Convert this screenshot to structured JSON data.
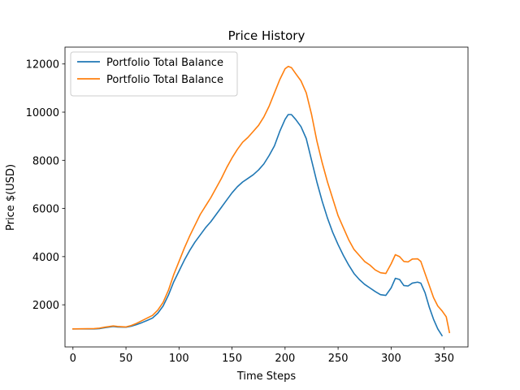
{
  "chart_data": {
    "type": "line",
    "title": "Price History",
    "xlabel": "Time Steps",
    "ylabel": "Price $(USD)",
    "xlim": [
      -7.5,
      372.5
    ],
    "ylim": [
      250,
      12700
    ],
    "xticks": [
      0,
      50,
      100,
      150,
      200,
      250,
      300,
      350
    ],
    "yticks": [
      2000,
      4000,
      6000,
      8000,
      10000,
      12000
    ],
    "grid": false,
    "legend_position": "top-left",
    "series": [
      {
        "name": "Portfolio Total Balance",
        "color": "#1f77b4",
        "points": [
          [
            0,
            1000
          ],
          [
            20,
            1000
          ],
          [
            25,
            1010
          ],
          [
            30,
            1050
          ],
          [
            38,
            1100
          ],
          [
            42,
            1080
          ],
          [
            50,
            1070
          ],
          [
            55,
            1110
          ],
          [
            60,
            1180
          ],
          [
            65,
            1260
          ],
          [
            70,
            1350
          ],
          [
            75,
            1450
          ],
          [
            80,
            1650
          ],
          [
            85,
            1950
          ],
          [
            90,
            2400
          ],
          [
            95,
            2950
          ],
          [
            100,
            3400
          ],
          [
            105,
            3850
          ],
          [
            110,
            4250
          ],
          [
            115,
            4600
          ],
          [
            120,
            4900
          ],
          [
            125,
            5200
          ],
          [
            130,
            5450
          ],
          [
            135,
            5750
          ],
          [
            140,
            6050
          ],
          [
            145,
            6350
          ],
          [
            150,
            6650
          ],
          [
            155,
            6900
          ],
          [
            160,
            7100
          ],
          [
            165,
            7250
          ],
          [
            170,
            7400
          ],
          [
            175,
            7600
          ],
          [
            180,
            7850
          ],
          [
            185,
            8200
          ],
          [
            190,
            8600
          ],
          [
            195,
            9200
          ],
          [
            200,
            9700
          ],
          [
            203,
            9900
          ],
          [
            206,
            9900
          ],
          [
            210,
            9700
          ],
          [
            215,
            9400
          ],
          [
            220,
            8900
          ],
          [
            225,
            8000
          ],
          [
            230,
            7100
          ],
          [
            235,
            6300
          ],
          [
            240,
            5600
          ],
          [
            245,
            5000
          ],
          [
            250,
            4500
          ],
          [
            255,
            4050
          ],
          [
            260,
            3650
          ],
          [
            265,
            3300
          ],
          [
            270,
            3050
          ],
          [
            275,
            2850
          ],
          [
            280,
            2700
          ],
          [
            285,
            2550
          ],
          [
            290,
            2420
          ],
          [
            295,
            2390
          ],
          [
            300,
            2700
          ],
          [
            304,
            3100
          ],
          [
            308,
            3050
          ],
          [
            312,
            2800
          ],
          [
            316,
            2780
          ],
          [
            320,
            2900
          ],
          [
            325,
            2940
          ],
          [
            328,
            2900
          ],
          [
            332,
            2500
          ],
          [
            336,
            1900
          ],
          [
            340,
            1400
          ],
          [
            344,
            1000
          ],
          [
            348,
            720
          ]
        ]
      },
      {
        "name": "Portfolio Total Balance",
        "color": "#ff7f0e",
        "points": [
          [
            0,
            1000
          ],
          [
            20,
            1010
          ],
          [
            25,
            1030
          ],
          [
            30,
            1070
          ],
          [
            38,
            1120
          ],
          [
            42,
            1100
          ],
          [
            50,
            1080
          ],
          [
            55,
            1140
          ],
          [
            60,
            1230
          ],
          [
            65,
            1340
          ],
          [
            70,
            1450
          ],
          [
            75,
            1560
          ],
          [
            80,
            1780
          ],
          [
            85,
            2100
          ],
          [
            90,
            2600
          ],
          [
            95,
            3250
          ],
          [
            100,
            3800
          ],
          [
            105,
            4350
          ],
          [
            110,
            4850
          ],
          [
            115,
            5300
          ],
          [
            120,
            5750
          ],
          [
            125,
            6100
          ],
          [
            130,
            6450
          ],
          [
            135,
            6850
          ],
          [
            140,
            7250
          ],
          [
            145,
            7700
          ],
          [
            150,
            8100
          ],
          [
            155,
            8450
          ],
          [
            160,
            8750
          ],
          [
            165,
            8950
          ],
          [
            170,
            9200
          ],
          [
            175,
            9450
          ],
          [
            180,
            9800
          ],
          [
            185,
            10250
          ],
          [
            190,
            10800
          ],
          [
            195,
            11350
          ],
          [
            200,
            11800
          ],
          [
            203,
            11900
          ],
          [
            206,
            11850
          ],
          [
            210,
            11600
          ],
          [
            215,
            11300
          ],
          [
            220,
            10800
          ],
          [
            225,
            9900
          ],
          [
            230,
            8800
          ],
          [
            235,
            7900
          ],
          [
            240,
            7100
          ],
          [
            245,
            6400
          ],
          [
            250,
            5700
          ],
          [
            255,
            5200
          ],
          [
            260,
            4700
          ],
          [
            265,
            4300
          ],
          [
            270,
            4050
          ],
          [
            275,
            3800
          ],
          [
            280,
            3650
          ],
          [
            285,
            3450
          ],
          [
            290,
            3330
          ],
          [
            295,
            3300
          ],
          [
            300,
            3700
          ],
          [
            304,
            4080
          ],
          [
            308,
            4000
          ],
          [
            312,
            3800
          ],
          [
            316,
            3780
          ],
          [
            320,
            3900
          ],
          [
            325,
            3910
          ],
          [
            328,
            3800
          ],
          [
            332,
            3300
          ],
          [
            336,
            2800
          ],
          [
            340,
            2300
          ],
          [
            344,
            1950
          ],
          [
            348,
            1750
          ],
          [
            352,
            1500
          ],
          [
            355,
            850
          ]
        ]
      }
    ]
  }
}
